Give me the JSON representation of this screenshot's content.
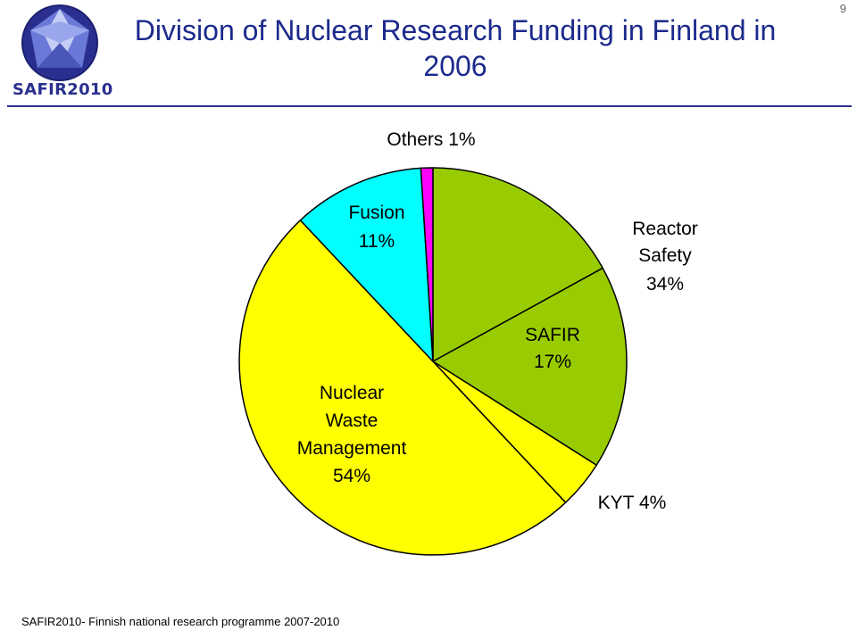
{
  "header": {
    "logo_text": "SAFIR2010",
    "title": "Division of Nuclear Research Funding in Finland in 2006",
    "page_number": "9"
  },
  "footer": {
    "text": "SAFIR2010- Finnish national research programme 2007-2010"
  },
  "chart_data": {
    "type": "pie",
    "title": "Division of Nuclear Research Funding in Finland in 2006",
    "slices": [
      {
        "label": "Reactor Safety",
        "value": 17,
        "color": "#99cc00"
      },
      {
        "label": "SAFIR",
        "value": 17,
        "color": "#99cc00"
      },
      {
        "label": "KYT",
        "value": 4,
        "color": "#ffff00"
      },
      {
        "label": "Nuclear Waste Management",
        "value": 50,
        "color": "#ffff00"
      },
      {
        "label": "Fusion",
        "value": 11,
        "color": "#00ffff"
      },
      {
        "label": "Others",
        "value": 1,
        "color": "#ff00ff"
      }
    ],
    "labels": {
      "reactor": [
        "Reactor",
        "Safety",
        "34%"
      ],
      "safir": [
        "SAFIR",
        "17%"
      ],
      "kyt": "KYT 4%",
      "waste": [
        "Nuclear",
        "Waste",
        "Management",
        "54%"
      ],
      "fusion": [
        "Fusion",
        "11%"
      ],
      "others": "Others 1%"
    }
  }
}
